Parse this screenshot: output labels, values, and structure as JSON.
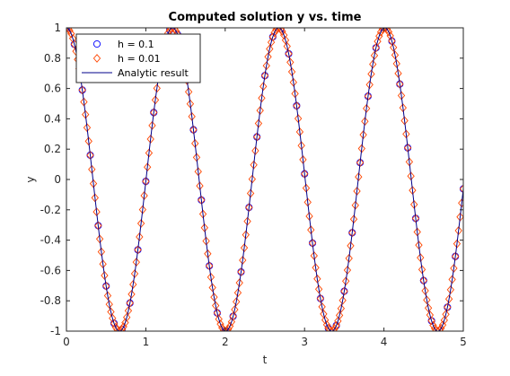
{
  "chart_data": {
    "type": "line",
    "title": "Computed solution y vs. time",
    "xlabel": "t",
    "ylabel": "y",
    "xlim": [
      0,
      5
    ],
    "ylim": [
      -1,
      1
    ],
    "xticks": [
      "0",
      "1",
      "2",
      "3",
      "4",
      "5"
    ],
    "yticks": [
      "-1",
      "-0.8",
      "-0.6",
      "-0.4",
      "-0.2",
      "0",
      "0.2",
      "0.4",
      "0.6",
      "0.8",
      "1"
    ],
    "grid": false,
    "legend_position": "top-left",
    "model": "y = cos(ω·t), ω ≈ 4.7",
    "series": [
      {
        "name": "h = 0.1",
        "marker": "circle",
        "color": "#0000ff",
        "x_start": 0,
        "x_end": 5,
        "step": 0.1,
        "omega": 4.7
      },
      {
        "name": "h = 0.01",
        "marker": "diamond",
        "color": "#ff4500",
        "x_start": 0,
        "x_end": 5,
        "step": 0.01,
        "omega": 4.7
      },
      {
        "name": "Analytic result",
        "marker": "none",
        "color": "#00008b",
        "x_start": 0,
        "x_end": 5,
        "step": 0.005,
        "omega": 4.7
      }
    ]
  }
}
